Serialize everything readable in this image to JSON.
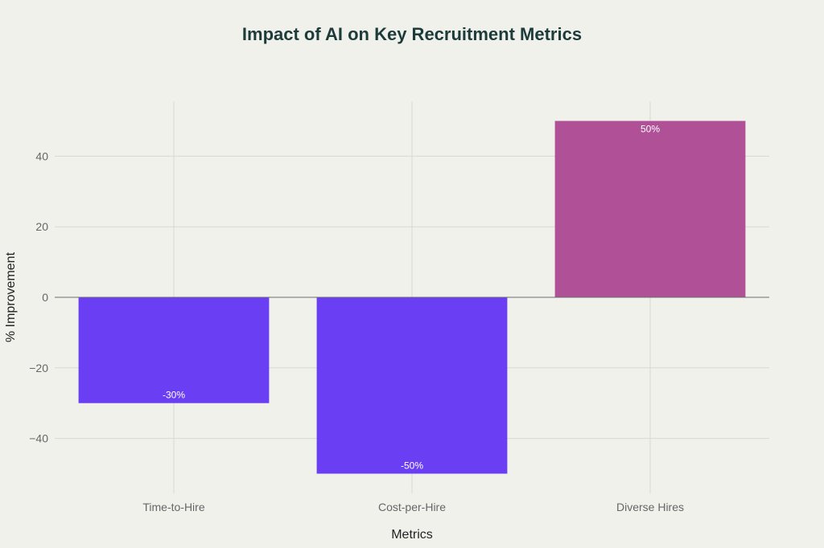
{
  "chart_data": {
    "type": "bar",
    "title": "Impact of AI on Key Recruitment Metrics",
    "xlabel": "Metrics",
    "ylabel": "% Improvement",
    "categories": [
      "Time-to-Hire",
      "Cost-per-Hire",
      "Diverse Hires"
    ],
    "values": [
      -30,
      -50,
      50
    ],
    "data_labels": [
      "-30%",
      "-50%",
      "50%"
    ],
    "colors": [
      "#6a3ef2",
      "#6a3ef2",
      "#b05096"
    ],
    "ylim": [
      -55,
      55
    ],
    "yticks": [
      -40,
      -20,
      0,
      20,
      40
    ],
    "ytick_labels": [
      "−40",
      "−20",
      "0",
      "20",
      "40"
    ],
    "grid": true,
    "legend": "none"
  }
}
